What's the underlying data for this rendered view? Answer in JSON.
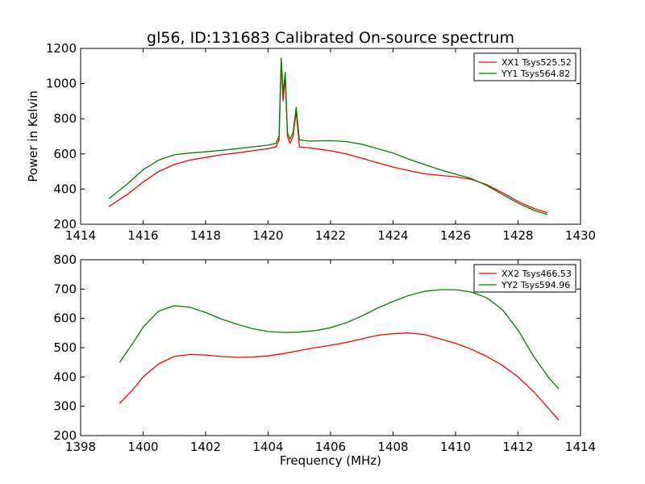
{
  "title": "gl56, ID:131683 Calibrated On-source spectrum",
  "chart_data": [
    {
      "type": "line",
      "title": "gl56, ID:131683 Calibrated On-source spectrum",
      "xlabel": "",
      "ylabel": "Power in Kelvin",
      "xlim": [
        1414,
        1430
      ],
      "ylim": [
        200,
        1200
      ],
      "xticks": [
        1414,
        1416,
        1418,
        1420,
        1422,
        1424,
        1426,
        1428,
        1430
      ],
      "yticks": [
        200,
        400,
        600,
        800,
        1000,
        1200
      ],
      "xtick_labels": [
        "1414",
        "1416",
        "1418",
        "1420",
        "1422",
        "1424",
        "1426",
        "1428",
        "1430"
      ],
      "ytick_labels": [
        "200",
        "400",
        "600",
        "800",
        "1000",
        "1200"
      ],
      "grid": false,
      "legend_position": "top-right",
      "series": [
        {
          "name": "XX1 Tsys525.52",
          "color": "#ff0000",
          "x": [
            1414.9,
            1415.5,
            1416.0,
            1416.5,
            1417.0,
            1417.5,
            1418.0,
            1418.5,
            1419.0,
            1419.5,
            1420.0,
            1420.25,
            1420.35,
            1420.42,
            1420.48,
            1420.55,
            1420.62,
            1420.7,
            1420.8,
            1420.9,
            1421.0,
            1421.3,
            1422.0,
            1422.5,
            1423.0,
            1423.5,
            1424.0,
            1424.5,
            1425.0,
            1425.5,
            1426.0,
            1426.5,
            1427.0,
            1427.5,
            1428.0,
            1428.5,
            1428.95
          ],
          "y": [
            300,
            370,
            440,
            500,
            540,
            565,
            580,
            595,
            605,
            618,
            630,
            640,
            680,
            1130,
            900,
            1040,
            700,
            660,
            700,
            840,
            640,
            635,
            618,
            600,
            575,
            550,
            525,
            505,
            487,
            478,
            470,
            455,
            425,
            380,
            330,
            290,
            265
          ]
        },
        {
          "name": "YY1 Tsys564.82",
          "color": "#008000",
          "x": [
            1414.9,
            1415.5,
            1416.0,
            1416.5,
            1417.0,
            1417.5,
            1418.0,
            1418.5,
            1419.0,
            1419.5,
            1420.0,
            1420.25,
            1420.35,
            1420.42,
            1420.48,
            1420.55,
            1420.62,
            1420.7,
            1420.8,
            1420.9,
            1421.0,
            1421.3,
            1422.0,
            1422.5,
            1423.0,
            1423.5,
            1424.0,
            1424.5,
            1425.0,
            1425.5,
            1426.0,
            1426.5,
            1427.0,
            1427.5,
            1428.0,
            1428.5,
            1428.95
          ],
          "y": [
            345,
            430,
            510,
            565,
            595,
            605,
            612,
            620,
            630,
            640,
            650,
            660,
            700,
            1145,
            950,
            1065,
            720,
            685,
            720,
            865,
            680,
            673,
            675,
            670,
            655,
            630,
            605,
            570,
            540,
            510,
            485,
            460,
            420,
            370,
            320,
            280,
            255
          ]
        }
      ]
    },
    {
      "type": "line",
      "title": "",
      "xlabel": "Frequency (MHz)",
      "ylabel": "",
      "xlim": [
        1398,
        1414
      ],
      "ylim": [
        200,
        800
      ],
      "xticks": [
        1398,
        1400,
        1402,
        1404,
        1406,
        1408,
        1410,
        1412,
        1414
      ],
      "yticks": [
        200,
        300,
        400,
        500,
        600,
        700,
        800
      ],
      "xtick_labels": [
        "1398",
        "1400",
        "1402",
        "1404",
        "1406",
        "1408",
        "1410",
        "1412",
        "1414"
      ],
      "ytick_labels": [
        "200",
        "300",
        "400",
        "500",
        "600",
        "700",
        "800"
      ],
      "grid": false,
      "legend_position": "top-right",
      "series": [
        {
          "name": "XX2 Tsys466.53",
          "color": "#ff0000",
          "x": [
            1399.25,
            1399.7,
            1400.0,
            1400.5,
            1401.0,
            1401.5,
            1402.0,
            1402.5,
            1403.0,
            1403.5,
            1404.0,
            1404.5,
            1405.0,
            1405.5,
            1406.0,
            1406.5,
            1407.0,
            1407.5,
            1408.0,
            1408.5,
            1409.0,
            1409.5,
            1410.0,
            1410.5,
            1411.0,
            1411.5,
            1412.0,
            1412.5,
            1413.0,
            1413.3
          ],
          "y": [
            310,
            360,
            400,
            445,
            470,
            477,
            475,
            470,
            467,
            468,
            472,
            480,
            490,
            500,
            508,
            518,
            530,
            542,
            548,
            550,
            545,
            530,
            515,
            495,
            470,
            440,
            400,
            350,
            290,
            253
          ]
        },
        {
          "name": "YY2 Tsys594.96",
          "color": "#008000",
          "x": [
            1399.25,
            1399.7,
            1400.0,
            1400.5,
            1401.0,
            1401.5,
            1402.0,
            1402.5,
            1403.0,
            1403.5,
            1404.0,
            1404.5,
            1405.0,
            1405.5,
            1406.0,
            1406.5,
            1407.0,
            1407.5,
            1408.0,
            1408.5,
            1409.0,
            1409.5,
            1410.0,
            1410.5,
            1411.0,
            1411.5,
            1412.0,
            1412.5,
            1413.0,
            1413.3
          ],
          "y": [
            450,
            520,
            570,
            625,
            643,
            638,
            620,
            598,
            580,
            565,
            555,
            552,
            553,
            558,
            568,
            585,
            608,
            635,
            658,
            678,
            692,
            698,
            698,
            690,
            670,
            630,
            560,
            470,
            395,
            360
          ]
        }
      ]
    }
  ]
}
